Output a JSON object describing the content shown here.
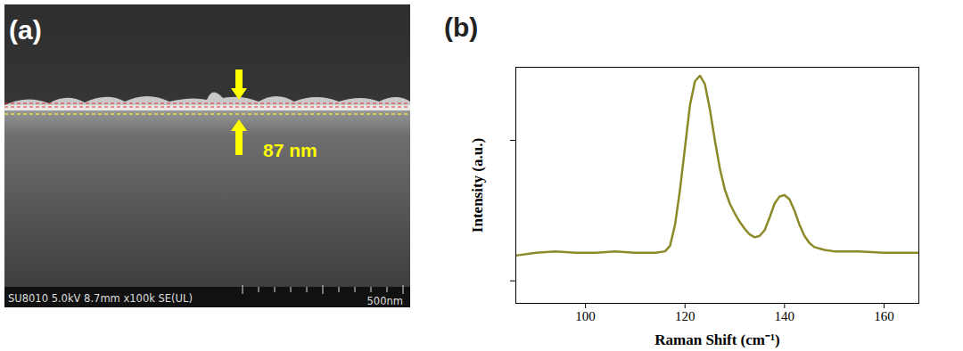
{
  "chart_data": {
    "type": "line",
    "title": "(b)",
    "xlabel": "Raman Shift (cm⁻¹)",
    "ylabel": "Intensity (a.u.)",
    "x": [
      86,
      90,
      94,
      98,
      102,
      106,
      110,
      114,
      116,
      117,
      118,
      119,
      120,
      121,
      122,
      123,
      124,
      125,
      126,
      127,
      128,
      129,
      130,
      131,
      132,
      133,
      134,
      135,
      136,
      137,
      138,
      139,
      140,
      141,
      142,
      143,
      144,
      145,
      146,
      148,
      150,
      155,
      160,
      167
    ],
    "values": [
      0.18,
      0.2,
      0.21,
      0.2,
      0.2,
      0.21,
      0.2,
      0.2,
      0.21,
      0.25,
      0.4,
      0.65,
      0.95,
      1.25,
      1.42,
      1.46,
      1.4,
      1.22,
      1.0,
      0.8,
      0.65,
      0.55,
      0.48,
      0.42,
      0.37,
      0.33,
      0.31,
      0.32,
      0.36,
      0.45,
      0.55,
      0.6,
      0.61,
      0.58,
      0.5,
      0.4,
      0.32,
      0.27,
      0.24,
      0.22,
      0.21,
      0.21,
      0.2,
      0.2
    ],
    "color": "#8c8a28",
    "xlim": [
      86,
      167
    ],
    "ylim": [
      -0.16,
      1.52
    ],
    "xticks": [
      100,
      120,
      140,
      160
    ],
    "yticks": [
      0,
      1
    ],
    "tick_labels": "x"
  },
  "image_panel": {
    "label": "(a)",
    "measurement": "87 nm",
    "info": "SU8010 5.0kV 8.7mm x100k SE(UL)",
    "scale_bar": "500nm"
  }
}
